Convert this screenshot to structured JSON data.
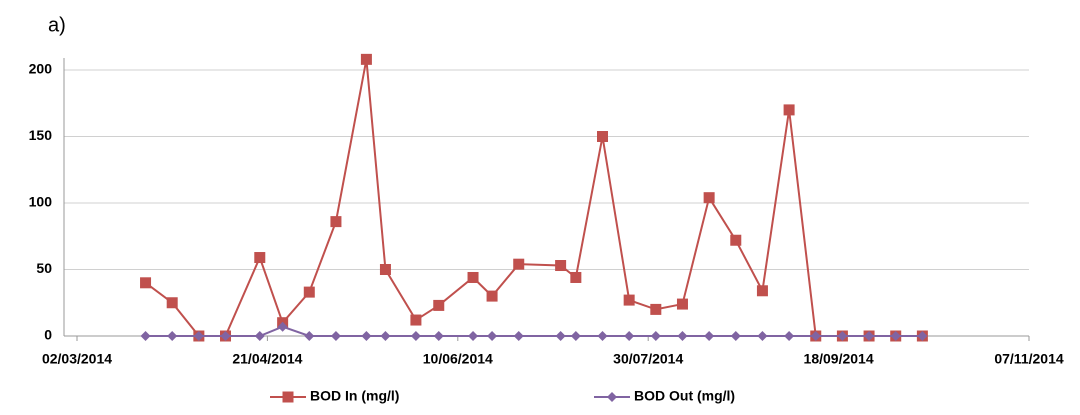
{
  "chart_data": {
    "type": "line",
    "label": "a)",
    "x": [
      "2014-03-20",
      "2014-03-27",
      "2014-04-03",
      "2014-04-10",
      "2014-04-19",
      "2014-04-25",
      "2014-05-02",
      "2014-05-09",
      "2014-05-17",
      "2014-05-22",
      "2014-05-30",
      "2014-06-05",
      "2014-06-14",
      "2014-06-19",
      "2014-06-26",
      "2014-07-07",
      "2014-07-11",
      "2014-07-18",
      "2014-07-25",
      "2014-08-01",
      "2014-08-08",
      "2014-08-15",
      "2014-08-22",
      "2014-08-29",
      "2014-09-05",
      "2014-09-12",
      "2014-09-19",
      "2014-09-26",
      "2014-10-03",
      "2014-10-10"
    ],
    "series": [
      {
        "name": "BOD In (mg/l)",
        "color": "#c0504d",
        "marker": "square",
        "values": [
          40,
          25,
          0,
          0,
          59,
          10,
          33,
          86,
          208,
          50,
          12,
          23,
          44,
          30,
          54,
          53,
          44,
          150,
          27,
          20,
          24,
          104,
          72,
          34,
          170,
          0,
          0,
          0,
          0,
          0
        ]
      },
      {
        "name": "BOD Out (mg/l)",
        "color": "#8064a2",
        "marker": "diamond",
        "values": [
          0,
          0,
          0,
          0,
          0,
          7,
          0,
          0,
          0,
          0,
          0,
          0,
          0,
          0,
          0,
          0,
          0,
          0,
          0,
          0,
          0,
          0,
          0,
          0,
          0,
          0,
          0,
          0,
          0,
          0
        ]
      }
    ],
    "xlim": [
      "2014-03-02",
      "2014-11-07"
    ],
    "xticks": [
      {
        "value": "2014-03-02",
        "label": "02/03/2014"
      },
      {
        "value": "2014-04-21",
        "label": "21/04/2014"
      },
      {
        "value": "2014-06-10",
        "label": "10/06/2014"
      },
      {
        "value": "2014-07-30",
        "label": "30/07/2014"
      },
      {
        "value": "2014-09-18",
        "label": "18/09/2014"
      },
      {
        "value": "2014-11-07",
        "label": "07/11/2014"
      }
    ],
    "ylim": [
      0,
      200
    ],
    "yticks": [
      0,
      50,
      100,
      150,
      200
    ],
    "grid": true,
    "legend": "bottom"
  }
}
